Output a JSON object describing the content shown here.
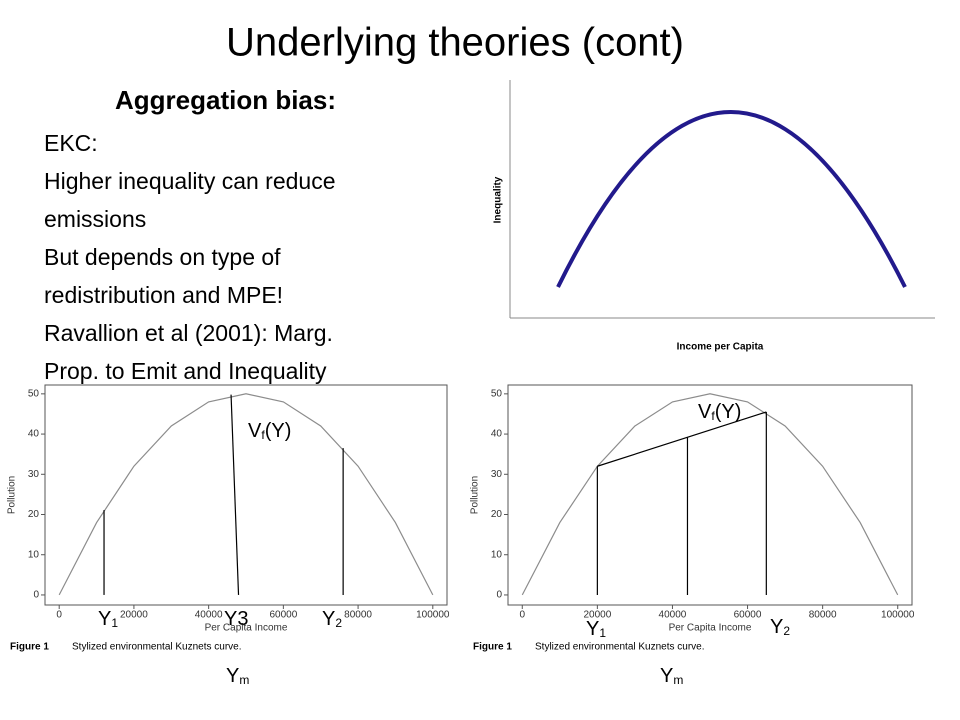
{
  "title": "Underlying theories (cont)",
  "subtitle": "Aggregation bias:",
  "body_lines": [
    "EKC:",
    "Higher inequality can reduce",
    "emissions",
    "But depends on type of",
    "redistribution and MPE!",
    "Ravallion et al (2001): Marg.",
    "Prop. to Emit and Inequality"
  ],
  "chart_data": [
    {
      "type": "sketch",
      "xlabel": "Income per Capita",
      "ylabel": "Inequality",
      "color": "#221a8c"
    },
    {
      "type": "line",
      "xlabel": "Per Capita Income",
      "ylabel": "Pollution",
      "color": "#8c8c8c",
      "x": [
        0,
        10000,
        20000,
        30000,
        40000,
        50000,
        60000,
        70000,
        80000,
        90000,
        100000
      ],
      "values": [
        0,
        18,
        32,
        42,
        48,
        50,
        48,
        42,
        32,
        18,
        0
      ],
      "xlim": [
        -3800,
        103800
      ],
      "ylim": [
        -2.5,
        52.2
      ],
      "xticks": [
        0,
        20000,
        40000,
        60000,
        80000,
        100000
      ],
      "yticks": [
        0,
        10,
        20,
        30,
        40,
        50
      ],
      "caption_label": "Figure 1",
      "caption": "Stylized environmental Kuznets curve.",
      "lines": [
        {
          "x1": 12000,
          "y1": 0,
          "x2": 12000,
          "y2": 21.1
        },
        {
          "x1": 48000,
          "y1": 0,
          "x2": 46000,
          "y2": 49.8
        },
        {
          "x1": 76000,
          "y1": 0,
          "x2": 76000,
          "y2": 36.5
        }
      ],
      "labels": [
        {
          "text": "Y",
          "sub": "1"
        },
        {
          "text": "Y3"
        },
        {
          "text": "Y",
          "sub": "2"
        },
        {
          "text": "V",
          "sub": "f",
          "rest": "(Y)"
        },
        {
          "text": "Y",
          "sub": "m"
        }
      ]
    },
    {
      "type": "line",
      "xlabel": "Per Capita Income",
      "ylabel": "Pollution",
      "color": "#8c8c8c",
      "x": [
        0,
        10000,
        20000,
        30000,
        40000,
        50000,
        60000,
        70000,
        80000,
        90000,
        100000
      ],
      "values": [
        0,
        18,
        32,
        42,
        48,
        50,
        48,
        42,
        32,
        18,
        0
      ],
      "xlim": [
        -3800,
        103800
      ],
      "ylim": [
        -2.5,
        52.2
      ],
      "xticks": [
        0,
        20000,
        40000,
        60000,
        80000,
        100000
      ],
      "yticks": [
        0,
        10,
        20,
        30,
        40,
        50
      ],
      "caption_label": "Figure 1",
      "caption": "Stylized environmental Kuznets curve.",
      "lines": [
        {
          "x1": 20000,
          "y1": 0,
          "x2": 20000,
          "y2": 32
        },
        {
          "x1": 44000,
          "y1": 0,
          "x2": 44000,
          "y2": 39.2
        },
        {
          "x1": 65000,
          "y1": 0,
          "x2": 65000,
          "y2": 45.5
        },
        {
          "x1": 20000,
          "y1": 32,
          "x2": 65000,
          "y2": 45.5
        }
      ],
      "labels": [
        {
          "text": "Y",
          "sub": "1"
        },
        {
          "text": "Y",
          "sub": "2"
        },
        {
          "text": "V",
          "sub": "f",
          "rest": "(Y)"
        },
        {
          "text": "Y",
          "sub": "m"
        }
      ]
    }
  ]
}
